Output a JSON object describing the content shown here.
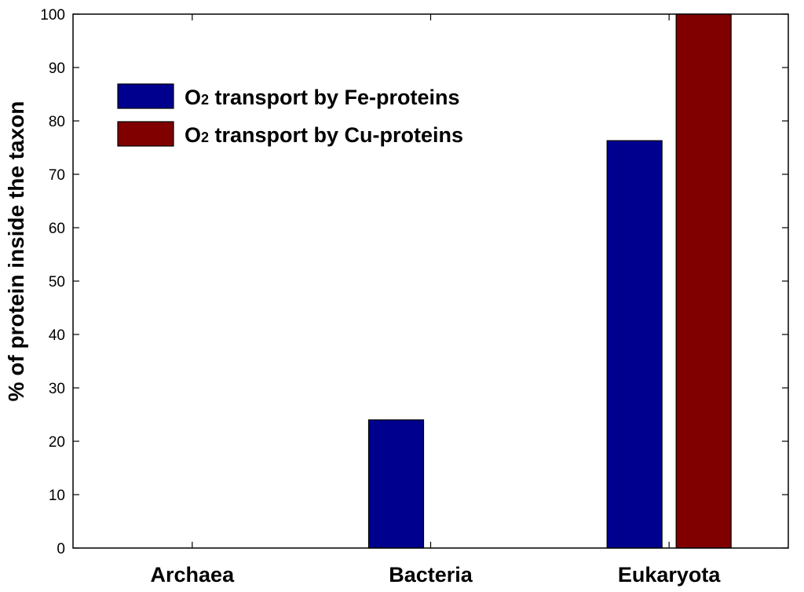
{
  "chart_data": {
    "type": "bar",
    "categories": [
      "Archaea",
      "Bacteria",
      "Eukaryota"
    ],
    "series": [
      {
        "name": "O2 transport by Fe-proteins",
        "legend_main": "O",
        "legend_sub": "2",
        "legend_rest": " transport by Fe-proteins",
        "color": "#00008f",
        "values": [
          0,
          24,
          76.3
        ]
      },
      {
        "name": "O2 transport by Cu-proteins",
        "legend_main": "O",
        "legend_sub": "2",
        "legend_rest": " transport by Cu-proteins",
        "color": "#800000",
        "values": [
          0,
          0,
          100
        ]
      }
    ],
    "ylabel": "% of protein inside the taxon",
    "xlabel": "",
    "ylim": [
      0,
      100
    ],
    "yticks": [
      0,
      10,
      20,
      30,
      40,
      50,
      60,
      70,
      80,
      90,
      100
    ],
    "grid": false,
    "legend_position": "top-left"
  }
}
